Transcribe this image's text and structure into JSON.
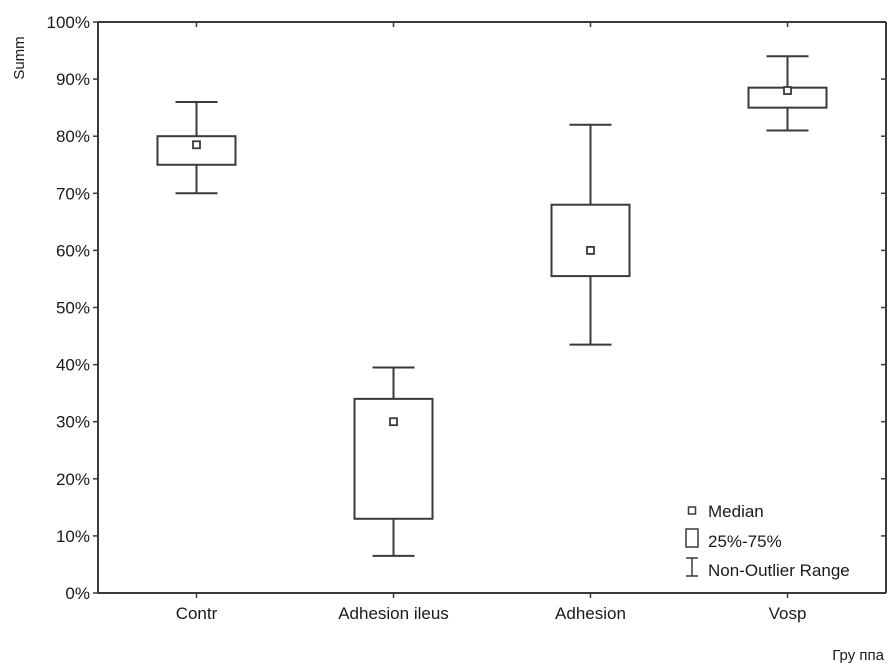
{
  "chart_data": {
    "type": "box",
    "ylabel": "Summ",
    "xlabel": "Гру ппа",
    "ylim": [
      0,
      100
    ],
    "y_ticks": [
      "0%",
      "10%",
      "20%",
      "30%",
      "40%",
      "50%",
      "60%",
      "70%",
      "80%",
      "90%",
      "100%"
    ],
    "categories": [
      "Contr",
      "Adhesion ileus",
      "Adhesion",
      "Vosp"
    ],
    "boxes": [
      {
        "category": "Contr",
        "min": 70,
        "q1": 75,
        "median": 78.5,
        "q3": 80,
        "max": 86
      },
      {
        "category": "Adhesion ileus",
        "min": 6.5,
        "q1": 13,
        "median": 30,
        "q3": 34,
        "max": 39.5
      },
      {
        "category": "Adhesion",
        "min": 43.5,
        "q1": 55.5,
        "median": 60,
        "q3": 68,
        "max": 82
      },
      {
        "category": "Vosp",
        "min": 81,
        "q1": 85,
        "median": 88,
        "q3": 88.5,
        "max": 94
      }
    ],
    "legend": {
      "position": "bottom-right",
      "entries": [
        "Median",
        "25%-75%",
        "Non-Outlier Range"
      ]
    },
    "grid": false
  }
}
